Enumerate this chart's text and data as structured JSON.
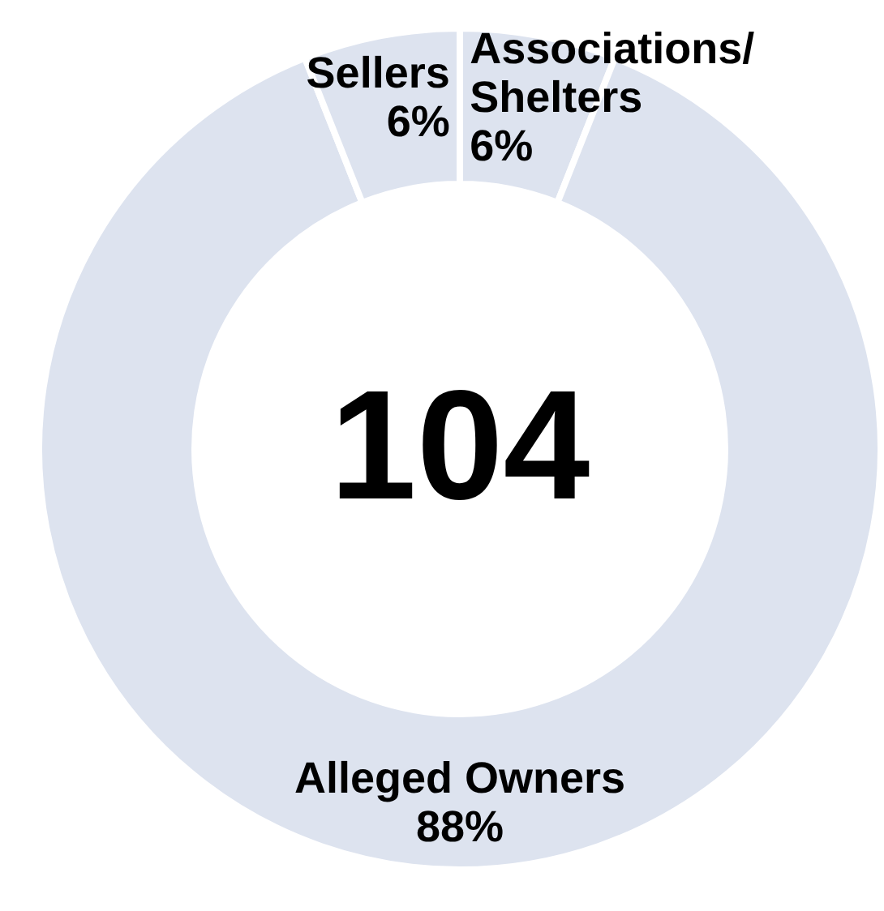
{
  "chart_data": {
    "type": "donut",
    "categories": [
      "Associations/Shelters",
      "Alleged Owners",
      "Sellers"
    ],
    "values": [
      6,
      88,
      6
    ],
    "colors": [
      "#dde3ef",
      "#dde3ef",
      "#dde3ef"
    ],
    "value_labels": [
      "6%",
      "88%",
      "6%"
    ],
    "annotations": [
      "104"
    ]
  }
}
